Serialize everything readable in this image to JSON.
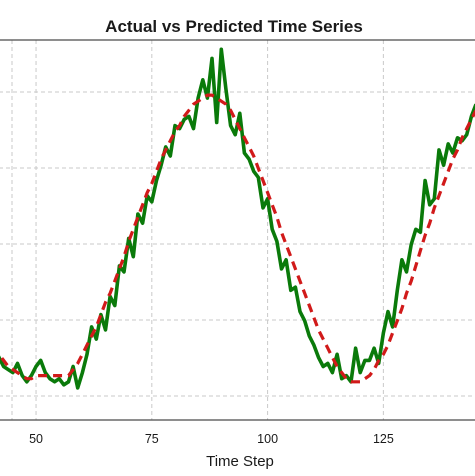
{
  "chart_data": {
    "type": "line",
    "title": "Actual vs Predicted Time Series",
    "xlabel": "Time Step",
    "ylabel": "",
    "xlim": [
      42,
      145
    ],
    "ylim": [
      0,
      1
    ],
    "x_ticks": [
      50,
      75,
      100,
      125
    ],
    "grid": true,
    "legend": "none",
    "series": [
      {
        "style": "solid",
        "color": "#0a7a0a",
        "x": [
          41,
          42,
          43,
          44,
          45,
          46,
          47,
          48,
          49,
          50,
          51,
          52,
          53,
          54,
          55,
          56,
          57,
          58,
          59,
          60,
          61,
          62,
          63,
          64,
          65,
          66,
          67,
          68,
          69,
          70,
          71,
          72,
          73,
          74,
          75,
          76,
          77,
          78,
          79,
          80,
          81,
          82,
          83,
          84,
          85,
          86,
          87,
          88,
          89,
          90,
          91,
          92,
          93,
          94,
          95,
          96,
          97,
          98,
          99,
          100,
          101,
          102,
          103,
          104,
          105,
          106,
          107,
          108,
          109,
          110,
          111,
          112,
          113,
          114,
          115,
          116,
          117,
          118,
          119,
          120,
          121,
          122,
          123,
          124,
          125,
          126,
          127,
          128,
          129,
          130,
          131,
          132,
          133,
          134,
          135,
          136,
          137,
          138,
          139,
          140,
          141,
          142,
          143,
          144,
          145
        ],
        "y": [
          0.16,
          0.13,
          0.1,
          0.09,
          0.08,
          0.11,
          0.07,
          0.05,
          0.07,
          0.1,
          0.12,
          0.08,
          0.06,
          0.05,
          0.06,
          0.04,
          0.05,
          0.1,
          0.03,
          0.08,
          0.14,
          0.23,
          0.19,
          0.27,
          0.22,
          0.33,
          0.3,
          0.43,
          0.41,
          0.52,
          0.46,
          0.6,
          0.57,
          0.66,
          0.64,
          0.71,
          0.76,
          0.82,
          0.79,
          0.89,
          0.88,
          0.91,
          0.92,
          0.88,
          0.98,
          1.04,
          0.98,
          1.11,
          0.9,
          1.14,
          1.01,
          0.89,
          0.86,
          0.93,
          0.8,
          0.78,
          0.74,
          0.72,
          0.62,
          0.65,
          0.55,
          0.51,
          0.42,
          0.45,
          0.35,
          0.36,
          0.28,
          0.25,
          0.2,
          0.17,
          0.13,
          0.1,
          0.11,
          0.08,
          0.14,
          0.06,
          0.07,
          0.05,
          0.16,
          0.08,
          0.12,
          0.12,
          0.16,
          0.11,
          0.21,
          0.28,
          0.23,
          0.35,
          0.45,
          0.41,
          0.5,
          0.55,
          0.54,
          0.71,
          0.63,
          0.65,
          0.81,
          0.76,
          0.83,
          0.8,
          0.85,
          0.84,
          0.86,
          0.92,
          0.96
        ]
      },
      {
        "style": "dashed",
        "color": "#d11a1a",
        "x": [
          41,
          42,
          43,
          44,
          45,
          46,
          47,
          48,
          49,
          50,
          51,
          52,
          53,
          54,
          55,
          56,
          57,
          58,
          59,
          60,
          61,
          62,
          63,
          64,
          65,
          66,
          67,
          68,
          69,
          70,
          71,
          72,
          73,
          74,
          75,
          76,
          77,
          78,
          79,
          80,
          81,
          82,
          83,
          84,
          85,
          86,
          87,
          88,
          89,
          90,
          91,
          92,
          93,
          94,
          95,
          96,
          97,
          98,
          99,
          100,
          101,
          102,
          103,
          104,
          105,
          106,
          107,
          108,
          109,
          110,
          111,
          112,
          113,
          114,
          115,
          116,
          117,
          118,
          119,
          120,
          121,
          122,
          123,
          124,
          125,
          126,
          127,
          128,
          129,
          130,
          131,
          132,
          133,
          134,
          135,
          136,
          137,
          138,
          139,
          140,
          141,
          142,
          143,
          144,
          145
        ],
        "y": [
          0.17,
          0.14,
          0.12,
          0.1,
          0.09,
          0.08,
          0.07,
          0.06,
          0.06,
          0.07,
          0.07,
          0.07,
          0.07,
          0.07,
          0.07,
          0.07,
          0.07,
          0.09,
          0.11,
          0.14,
          0.17,
          0.2,
          0.23,
          0.27,
          0.31,
          0.34,
          0.38,
          0.42,
          0.46,
          0.51,
          0.55,
          0.59,
          0.63,
          0.67,
          0.7,
          0.74,
          0.78,
          0.81,
          0.84,
          0.87,
          0.89,
          0.92,
          0.94,
          0.96,
          0.97,
          0.98,
          0.99,
          0.99,
          0.98,
          0.97,
          0.96,
          0.94,
          0.91,
          0.88,
          0.85,
          0.82,
          0.79,
          0.75,
          0.71,
          0.67,
          0.63,
          0.59,
          0.54,
          0.5,
          0.46,
          0.42,
          0.38,
          0.34,
          0.3,
          0.26,
          0.22,
          0.19,
          0.16,
          0.13,
          0.1,
          0.08,
          0.06,
          0.05,
          0.05,
          0.05,
          0.06,
          0.07,
          0.09,
          0.12,
          0.14,
          0.17,
          0.21,
          0.25,
          0.29,
          0.34,
          0.38,
          0.43,
          0.48,
          0.53,
          0.57,
          0.62,
          0.66,
          0.7,
          0.74,
          0.78,
          0.81,
          0.85,
          0.88,
          0.91,
          0.94
        ]
      }
    ]
  }
}
